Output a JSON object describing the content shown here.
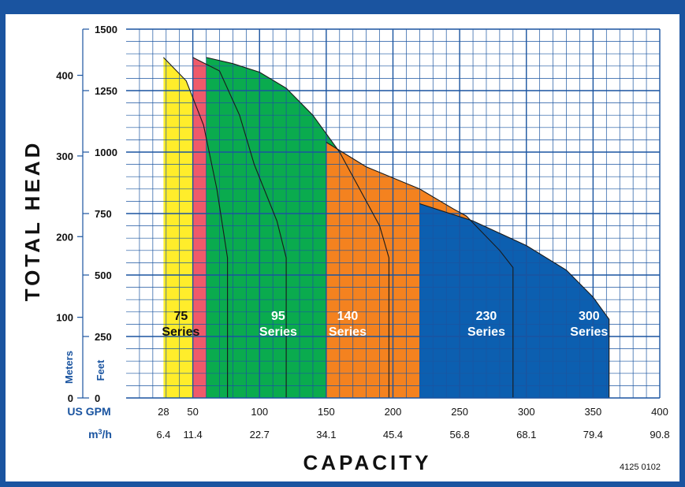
{
  "colors": {
    "frame": "#1a54a0",
    "grid": "#1a54a0",
    "axis_text_blue": "#1a54a0",
    "text_dark": "#111111"
  },
  "chart_data": {
    "type": "area",
    "title": "",
    "xlabel": "CAPACITY",
    "ylabel": "TOTAL HEAD",
    "x_unit_primary": "US GPM",
    "x_unit_secondary_base": "m",
    "x_unit_secondary_sup": "3",
    "x_unit_secondary_tail": "/h",
    "y_unit_primary": "Feet",
    "y_unit_secondary": "Meters",
    "xlim": [
      0,
      400
    ],
    "ylim": [
      0,
      1500
    ],
    "grid": true,
    "x_ticks_gpm": [
      {
        "value": 28,
        "label": "28"
      },
      {
        "value": 50,
        "label": "50"
      },
      {
        "value": 100,
        "label": "100"
      },
      {
        "value": 150,
        "label": "150"
      },
      {
        "value": 200,
        "label": "200"
      },
      {
        "value": 250,
        "label": "250"
      },
      {
        "value": 300,
        "label": "300"
      },
      {
        "value": 350,
        "label": "350"
      },
      {
        "value": 400,
        "label": "400"
      }
    ],
    "x_ticks_m3h": [
      {
        "value": 28,
        "label": "6.4"
      },
      {
        "value": 50,
        "label": "11.4"
      },
      {
        "value": 100,
        "label": "22.7"
      },
      {
        "value": 150,
        "label": "34.1"
      },
      {
        "value": 200,
        "label": "45.4"
      },
      {
        "value": 250,
        "label": "56.8"
      },
      {
        "value": 300,
        "label": "68.1"
      },
      {
        "value": 350,
        "label": "79.4"
      },
      {
        "value": 400,
        "label": "90.8"
      }
    ],
    "y_ticks_feet": [
      0,
      250,
      500,
      750,
      1000,
      1250,
      1500
    ],
    "y_ticks_meters": [
      0,
      100,
      200,
      300,
      400
    ],
    "series": [
      {
        "name": "75",
        "sub": "Series",
        "color": "#ffed2b",
        "label_at": [
          41,
          285
        ],
        "boundary": [
          [
            28,
            1385
          ],
          [
            45,
            1290
          ],
          [
            58,
            1110
          ],
          [
            68,
            850
          ],
          [
            76,
            570
          ],
          [
            76,
            0
          ]
        ]
      },
      {
        "name": "95",
        "sub": "Series",
        "color": "#ef5a6a",
        "label_at": [
          114,
          285
        ],
        "boundary": [
          [
            50,
            1385
          ],
          [
            70,
            1330
          ],
          [
            85,
            1150
          ],
          [
            96,
            950
          ],
          [
            113,
            720
          ],
          [
            120,
            570
          ],
          [
            120,
            0
          ]
        ]
      },
      {
        "name": "140",
        "sub": "Series",
        "color": "#0aab4e",
        "label_at": [
          166,
          285
        ],
        "boundary": [
          [
            60,
            1385
          ],
          [
            80,
            1360
          ],
          [
            100,
            1325
          ],
          [
            120,
            1260
          ],
          [
            140,
            1150
          ],
          [
            160,
            1000
          ],
          [
            175,
            850
          ],
          [
            190,
            700
          ],
          [
            197,
            570
          ],
          [
            197,
            0
          ]
        ]
      },
      {
        "name": "230",
        "sub": "Series",
        "color": "#f4821f",
        "label_at": [
          270,
          285
        ],
        "boundary": [
          [
            150,
            1040
          ],
          [
            180,
            940
          ],
          [
            220,
            850
          ],
          [
            245,
            770
          ],
          [
            255,
            740
          ],
          [
            280,
            600
          ],
          [
            290,
            530
          ],
          [
            290,
            0
          ]
        ]
      },
      {
        "name": "300",
        "sub": "Series",
        "color": "#0c5fb0",
        "label_at": [
          347,
          285
        ],
        "boundary": [
          [
            220,
            790
          ],
          [
            260,
            720
          ],
          [
            300,
            620
          ],
          [
            330,
            520
          ],
          [
            350,
            410
          ],
          [
            362,
            320
          ],
          [
            362,
            0
          ]
        ]
      }
    ]
  },
  "figure_code": "4125 0102"
}
